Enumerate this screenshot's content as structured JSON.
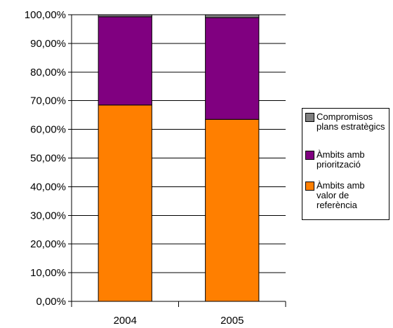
{
  "chart_data": {
    "type": "bar",
    "stacked": true,
    "categories": [
      "2004",
      "2005"
    ],
    "series": [
      {
        "name": "Àmbits amb valor de referència",
        "color": "#FF7F00",
        "values": [
          68.5,
          63.5
        ]
      },
      {
        "name": "Àmbits amb priorització",
        "color": "#800080",
        "values": [
          30.8,
          35.5
        ]
      },
      {
        "name": "Compromisos plans estratègics",
        "color": "#7F7F7F",
        "values": [
          0.7,
          1.0
        ]
      }
    ],
    "ylim": [
      0,
      100
    ],
    "y_ticks": [
      "0,00%",
      "10,00%",
      "20,00%",
      "30,00%",
      "40,00%",
      "50,00%",
      "60,00%",
      "70,00%",
      "80,00%",
      "90,00%",
      "100,00%"
    ],
    "grid": true,
    "legend": {
      "position": "right",
      "entries": [
        {
          "label": "Compromisos plans estratègics",
          "color": "#7F7F7F"
        },
        {
          "label": "Àmbits amb priorització",
          "color": "#800080"
        },
        {
          "label": "Àmbits amb valor de referència",
          "color": "#FF7F00"
        }
      ]
    },
    "title": "",
    "xlabel": "",
    "ylabel": ""
  }
}
